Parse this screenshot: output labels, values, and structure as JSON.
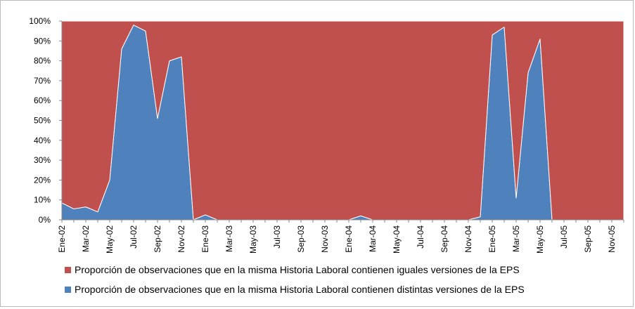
{
  "chart_data": {
    "type": "stacked-area-100",
    "categories": [
      "Ene-02",
      null,
      "Mar-02",
      null,
      "May-02",
      null,
      "Jul-02",
      null,
      "Sep-02",
      null,
      "Nov-02",
      null,
      "Ene-03",
      null,
      "Mar-03",
      null,
      "May-03",
      null,
      "Jul-03",
      null,
      "Sep-03",
      null,
      "Nov-03",
      null,
      "Ene-04",
      null,
      "Mar-04",
      null,
      "May-04",
      null,
      "Jul-04",
      null,
      "Sep-04",
      null,
      "Nov-04",
      null,
      "Ene-05",
      null,
      "Mar-05",
      null,
      "May-05",
      null,
      "Jul-05",
      null,
      "Sep-05",
      null,
      "Nov-05",
      null
    ],
    "series": [
      {
        "name": "Proporción de observaciones que en la misma Historia Laboral contienen iguales versiones de la EPS",
        "color": "#c0504d",
        "values": [
          91.5,
          94.5,
          93.5,
          96,
          80,
          14,
          2,
          5,
          49,
          20,
          18,
          100,
          97.5,
          100,
          100,
          100,
          100,
          100,
          100,
          100,
          100,
          100,
          100,
          100,
          100,
          98,
          100,
          100,
          100,
          100,
          100,
          100,
          100,
          100,
          100,
          98.5,
          7,
          3,
          89,
          26,
          9,
          100,
          100,
          100,
          100,
          100,
          100,
          100
        ]
      },
      {
        "name": "Proporción de observaciones que en la misma Historia Laboral contienen distintas versiones de la EPS",
        "color": "#4f81bd",
        "values": [
          8.5,
          5.5,
          6.5,
          4,
          20,
          86,
          98,
          95,
          51,
          80,
          82,
          0,
          2.5,
          0,
          0,
          0,
          0,
          0,
          0,
          0,
          0,
          0,
          0,
          0,
          0,
          2,
          0,
          0,
          0,
          0,
          0,
          0,
          0,
          0,
          0,
          1.5,
          93,
          97,
          11,
          74,
          91,
          0,
          0,
          0,
          0,
          0,
          0,
          0
        ]
      }
    ],
    "ylim": [
      0,
      100
    ],
    "yticks": [
      {
        "value": 0,
        "label": "0%"
      },
      {
        "value": 10,
        "label": "10%"
      },
      {
        "value": 20,
        "label": "20%"
      },
      {
        "value": 30,
        "label": "30%"
      },
      {
        "value": 40,
        "label": "40%"
      },
      {
        "value": 50,
        "label": "50%"
      },
      {
        "value": 60,
        "label": "60%"
      },
      {
        "value": 70,
        "label": "70%"
      },
      {
        "value": 80,
        "label": "80%"
      },
      {
        "value": 90,
        "label": "90%"
      },
      {
        "value": 100,
        "label": "100%"
      }
    ],
    "legend": "bottom"
  }
}
